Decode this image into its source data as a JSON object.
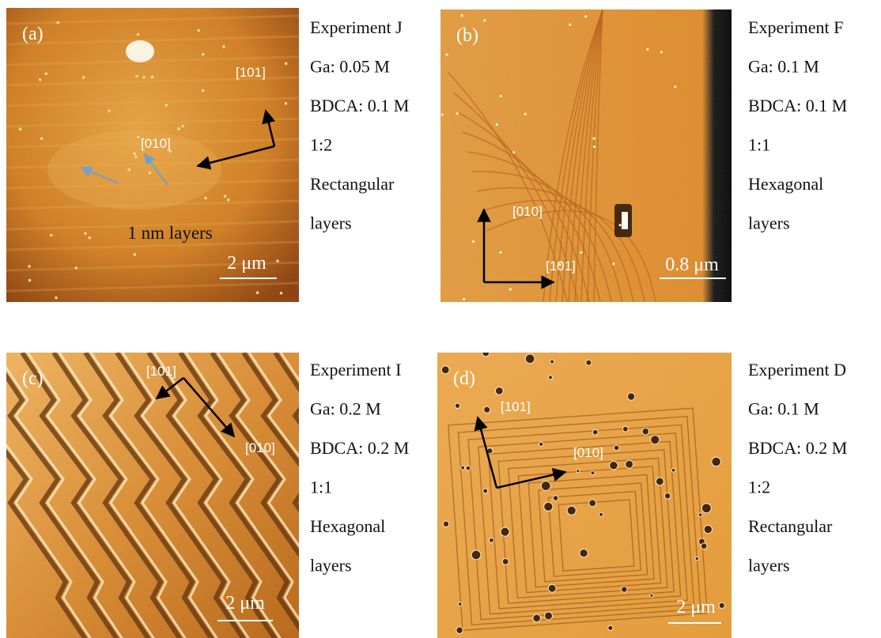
{
  "panels": [
    {
      "label": "(a)",
      "directions": [
        "[101]",
        "[010]"
      ],
      "scale_bar": "2 μm",
      "annotation": "1 nm layers",
      "description": [
        "Experiment J",
        "Ga: 0.05 M",
        "BDCA: 0.1 M",
        "1:2",
        "Rectangular",
        "layers"
      ]
    },
    {
      "label": "(b)",
      "directions": [
        "[010]",
        "[101]"
      ],
      "scale_bar": "0.8 μm",
      "description": [
        "Experiment F",
        "Ga: 0.1 M",
        "BDCA: 0.1 M",
        "1:1",
        "Hexagonal",
        "layers"
      ]
    },
    {
      "label": "(c)",
      "directions": [
        "[101]",
        "[010]"
      ],
      "scale_bar": "2 μm",
      "description": [
        "Experiment I",
        "Ga: 0.2 M",
        "BDCA: 0.2 M",
        "1:1",
        "Hexagonal",
        "layers"
      ]
    },
    {
      "label": "(d)",
      "directions": [
        "[101]",
        "[010]"
      ],
      "scale_bar": "2 μm",
      "description": [
        "Experiment D",
        "Ga: 0.1 M",
        "BDCA: 0.2 M",
        "1:2",
        "Rectangular",
        "layers"
      ]
    }
  ]
}
